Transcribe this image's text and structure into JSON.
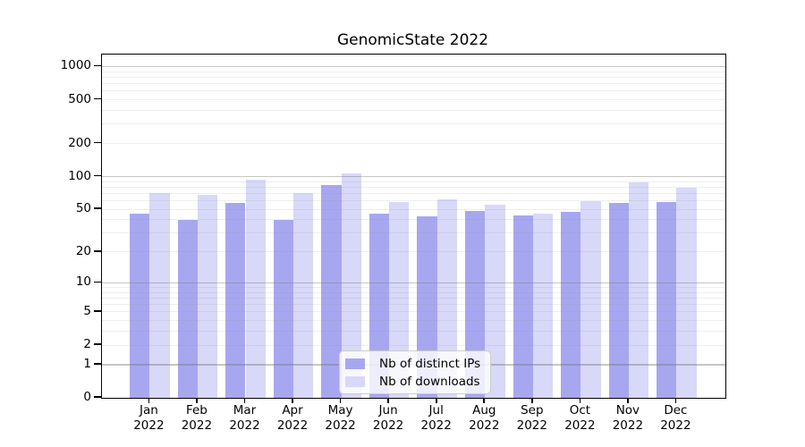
{
  "chart_data": {
    "type": "bar",
    "title": "GenomicState 2022",
    "categories": [
      "Jan 2022",
      "Feb 2022",
      "Mar 2022",
      "Apr 2022",
      "May 2022",
      "Jun 2022",
      "Jul 2022",
      "Aug 2022",
      "Sep 2022",
      "Oct 2022",
      "Nov 2022",
      "Dec 2022"
    ],
    "x_tick_line1": [
      "Jan",
      "Feb",
      "Mar",
      "Apr",
      "May",
      "Jun",
      "Jul",
      "Aug",
      "Sep",
      "Oct",
      "Nov",
      "Dec"
    ],
    "x_tick_line2": "2022",
    "series": [
      {
        "name": "Nb of distinct IPs",
        "color": "#a7a7f0",
        "values": [
          46,
          40,
          57,
          40,
          84,
          46,
          43,
          48,
          44,
          47,
          57,
          58
        ]
      },
      {
        "name": "Nb of downloads",
        "color": "#d8d8f8",
        "values": [
          71,
          68,
          94,
          70,
          107,
          58,
          62,
          55,
          46,
          60,
          88,
          79
        ]
      }
    ],
    "y_scale": "log10(1+x)",
    "y_ticks": [
      0,
      1,
      2,
      5,
      10,
      20,
      50,
      100,
      200,
      500,
      1000
    ],
    "y_major_gridlines": [
      1,
      10,
      100,
      1000
    ],
    "y_minor_gridlines": [
      2,
      3,
      4,
      5,
      6,
      7,
      8,
      9,
      20,
      30,
      40,
      50,
      60,
      70,
      80,
      90,
      200,
      300,
      400,
      500,
      600,
      700,
      800,
      900
    ],
    "ylim": [
      0,
      1270
    ],
    "grid": "horizontal major+minor, drawn over bars",
    "legend_position": "lower center, inside axes",
    "colors": {
      "axis": "#000000",
      "major_grid": "#b9b9b9",
      "minor_grid": "#e9e9e9",
      "text": "#000000"
    }
  }
}
